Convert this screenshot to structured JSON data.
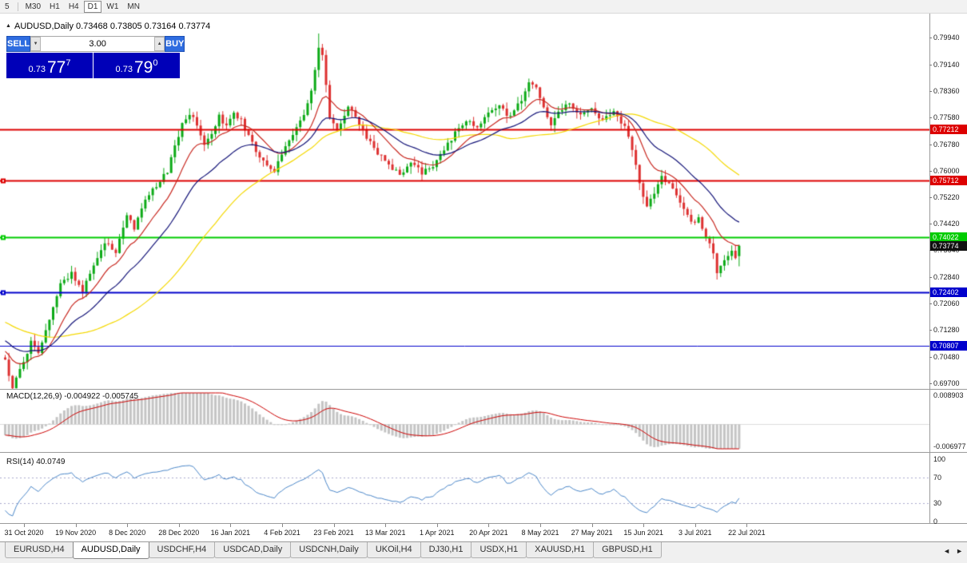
{
  "icons": {
    "collapse_panel": "▲",
    "volume_up": "▲",
    "volume_down": "▼",
    "tabs_scroll_left": "◄",
    "tabs_scroll_right": "►"
  },
  "toolbar": {
    "timeframes": [
      {
        "label": "5",
        "active": false,
        "separator_after": true
      },
      {
        "label": "M30",
        "active": false
      },
      {
        "label": "H1",
        "active": false
      },
      {
        "label": "H4",
        "active": false
      },
      {
        "label": "D1",
        "active": true
      },
      {
        "label": "W1",
        "active": false
      },
      {
        "label": "MN",
        "active": false
      }
    ]
  },
  "chart": {
    "title": "AUDUSD,Daily 0.73468 0.73805 0.73164 0.73774"
  },
  "trade_panel": {
    "sell_label": "SELL",
    "buy_label": "BUY",
    "volume": "3.00",
    "sell_price": {
      "prefix": "0.73",
      "big": "77",
      "sup": "7"
    },
    "buy_price": {
      "prefix": "0.73",
      "big": "79",
      "sup": "0"
    }
  },
  "macd_panel": {
    "label": "MACD(12,26,9) -0.004922 -0.005745"
  },
  "rsi_panel": {
    "label": "RSI(14) 40.0749"
  },
  "tabs": [
    {
      "label": "EURUSD,H4",
      "active": false
    },
    {
      "label": "AUDUSD,Daily",
      "active": true
    },
    {
      "label": "USDCHF,H4",
      "active": false
    },
    {
      "label": "USDCAD,Daily",
      "active": false
    },
    {
      "label": "USDCNH,Daily",
      "active": false
    },
    {
      "label": "UKOil,H4",
      "active": false
    },
    {
      "label": "DJ30,H1",
      "active": false
    },
    {
      "label": "USDX,H1",
      "active": false
    },
    {
      "label": "XAUUSD,H1",
      "active": false
    },
    {
      "label": "GBPUSD,H1",
      "active": false
    }
  ],
  "chart_data": {
    "type": "candlestick",
    "symbol": "AUDUSD",
    "timeframe": "Daily",
    "last_ohlc": {
      "open": 0.73468,
      "high": 0.73805,
      "low": 0.73164,
      "close": 0.73774
    },
    "current_price": 0.73774,
    "y_axis_ticks": [
      0.7994,
      0.7914,
      0.7836,
      0.7758,
      0.7678,
      0.76,
      0.7522,
      0.7442,
      0.7364,
      0.7284,
      0.7206,
      0.7128,
      0.7048,
      0.697
    ],
    "x_axis_dates": [
      "31 Oct 2020",
      "19 Nov 2020",
      "8 Dec 2020",
      "28 Dec 2020",
      "16 Jan 2021",
      "4 Feb 2021",
      "23 Feb 2021",
      "13 Mar 2021",
      "1 Apr 2021",
      "20 Apr 2021",
      "8 May 2021",
      "27 May 2021",
      "15 Jun 2021",
      "3 Jul 2021",
      "22 Jul 2021"
    ],
    "horizontal_levels": [
      {
        "price": 0.77212,
        "color": "#dd0000",
        "width": 2,
        "handle": false
      },
      {
        "price": 0.75712,
        "color": "#dd0000",
        "width": 2,
        "handle": true
      },
      {
        "price": 0.74022,
        "color": "#00cc00",
        "width": 2,
        "handle": true
      },
      {
        "price": 0.72402,
        "color": "#0000cc",
        "width": 2,
        "handle": true
      },
      {
        "price": 0.70807,
        "color": "#0000cc",
        "width": 1,
        "handle": false
      }
    ],
    "candle_colors": {
      "up": "#0caa16",
      "down": "#dd3030"
    },
    "num_candles": 200,
    "price_path": [
      [
        0,
        0.7035
      ],
      [
        2,
        0.6962
      ],
      [
        4,
        0.7012
      ],
      [
        7,
        0.709
      ],
      [
        9,
        0.7058
      ],
      [
        12,
        0.7152
      ],
      [
        15,
        0.7262
      ],
      [
        18,
        0.7298
      ],
      [
        21,
        0.7245
      ],
      [
        24,
        0.7318
      ],
      [
        27,
        0.7388
      ],
      [
        30,
        0.7355
      ],
      [
        33,
        0.7465
      ],
      [
        35,
        0.7432
      ],
      [
        38,
        0.7512
      ],
      [
        41,
        0.7555
      ],
      [
        44,
        0.7598
      ],
      [
        46,
        0.7668
      ],
      [
        48,
        0.7735
      ],
      [
        50,
        0.7768
      ],
      [
        52,
        0.7738
      ],
      [
        54,
        0.7672
      ],
      [
        56,
        0.7712
      ],
      [
        58,
        0.7762
      ],
      [
        60,
        0.7728
      ],
      [
        62,
        0.7772
      ],
      [
        64,
        0.7748
      ],
      [
        66,
        0.77
      ],
      [
        68,
        0.7658
      ],
      [
        70,
        0.7625
      ],
      [
        73,
        0.7598
      ],
      [
        75,
        0.7652
      ],
      [
        78,
        0.7712
      ],
      [
        81,
        0.7758
      ],
      [
        83,
        0.7832
      ],
      [
        85,
        0.7968
      ],
      [
        86,
        0.7938
      ],
      [
        88,
        0.7758
      ],
      [
        90,
        0.7722
      ],
      [
        93,
        0.779
      ],
      [
        95,
        0.776
      ],
      [
        98,
        0.77
      ],
      [
        101,
        0.7652
      ],
      [
        104,
        0.7618
      ],
      [
        107,
        0.7586
      ],
      [
        110,
        0.7622
      ],
      [
        113,
        0.7594
      ],
      [
        116,
        0.7614
      ],
      [
        119,
        0.7662
      ],
      [
        122,
        0.7712
      ],
      [
        125,
        0.7748
      ],
      [
        128,
        0.7728
      ],
      [
        131,
        0.7772
      ],
      [
        134,
        0.779
      ],
      [
        137,
        0.7756
      ],
      [
        140,
        0.7812
      ],
      [
        142,
        0.7866
      ],
      [
        144,
        0.7842
      ],
      [
        146,
        0.7788
      ],
      [
        148,
        0.774
      ],
      [
        150,
        0.7772
      ],
      [
        153,
        0.78
      ],
      [
        156,
        0.7762
      ],
      [
        159,
        0.7786
      ],
      [
        162,
        0.7748
      ],
      [
        165,
        0.7772
      ],
      [
        168,
        0.773
      ],
      [
        170,
        0.7662
      ],
      [
        172,
        0.7564
      ],
      [
        174,
        0.7494
      ],
      [
        176,
        0.7532
      ],
      [
        178,
        0.758
      ],
      [
        180,
        0.7558
      ],
      [
        182,
        0.7522
      ],
      [
        184,
        0.7486
      ],
      [
        186,
        0.7443
      ],
      [
        188,
        0.7458
      ],
      [
        190,
        0.7408
      ],
      [
        192,
        0.7348
      ],
      [
        193,
        0.7294
      ],
      [
        195,
        0.7332
      ],
      [
        197,
        0.7356
      ],
      [
        198,
        0.734
      ],
      [
        199,
        0.73774
      ]
    ],
    "moving_averages": [
      {
        "name": "SMA 50",
        "kind": "sma",
        "period": 50,
        "color": "#f4d800"
      },
      {
        "name": "EMA 12",
        "kind": "ema",
        "period": 12,
        "color": "#c82820"
      },
      {
        "name": "EMA 26",
        "kind": "ema",
        "period": 26,
        "color": "#141478"
      }
    ],
    "macd": {
      "fast": 12,
      "slow": 26,
      "signal": 9,
      "axis_max": 0.008903,
      "axis_min": -0.006977,
      "current_main": -0.004922,
      "current_signal": -0.005745,
      "histogram_color": "#c4c4c4",
      "signal_color": "#cc0000"
    },
    "rsi": {
      "period": 14,
      "current": 40.0749,
      "axis_ticks": [
        100,
        70,
        30,
        0
      ],
      "levels": [
        70,
        30
      ],
      "line_color": "#4a86c8"
    }
  }
}
